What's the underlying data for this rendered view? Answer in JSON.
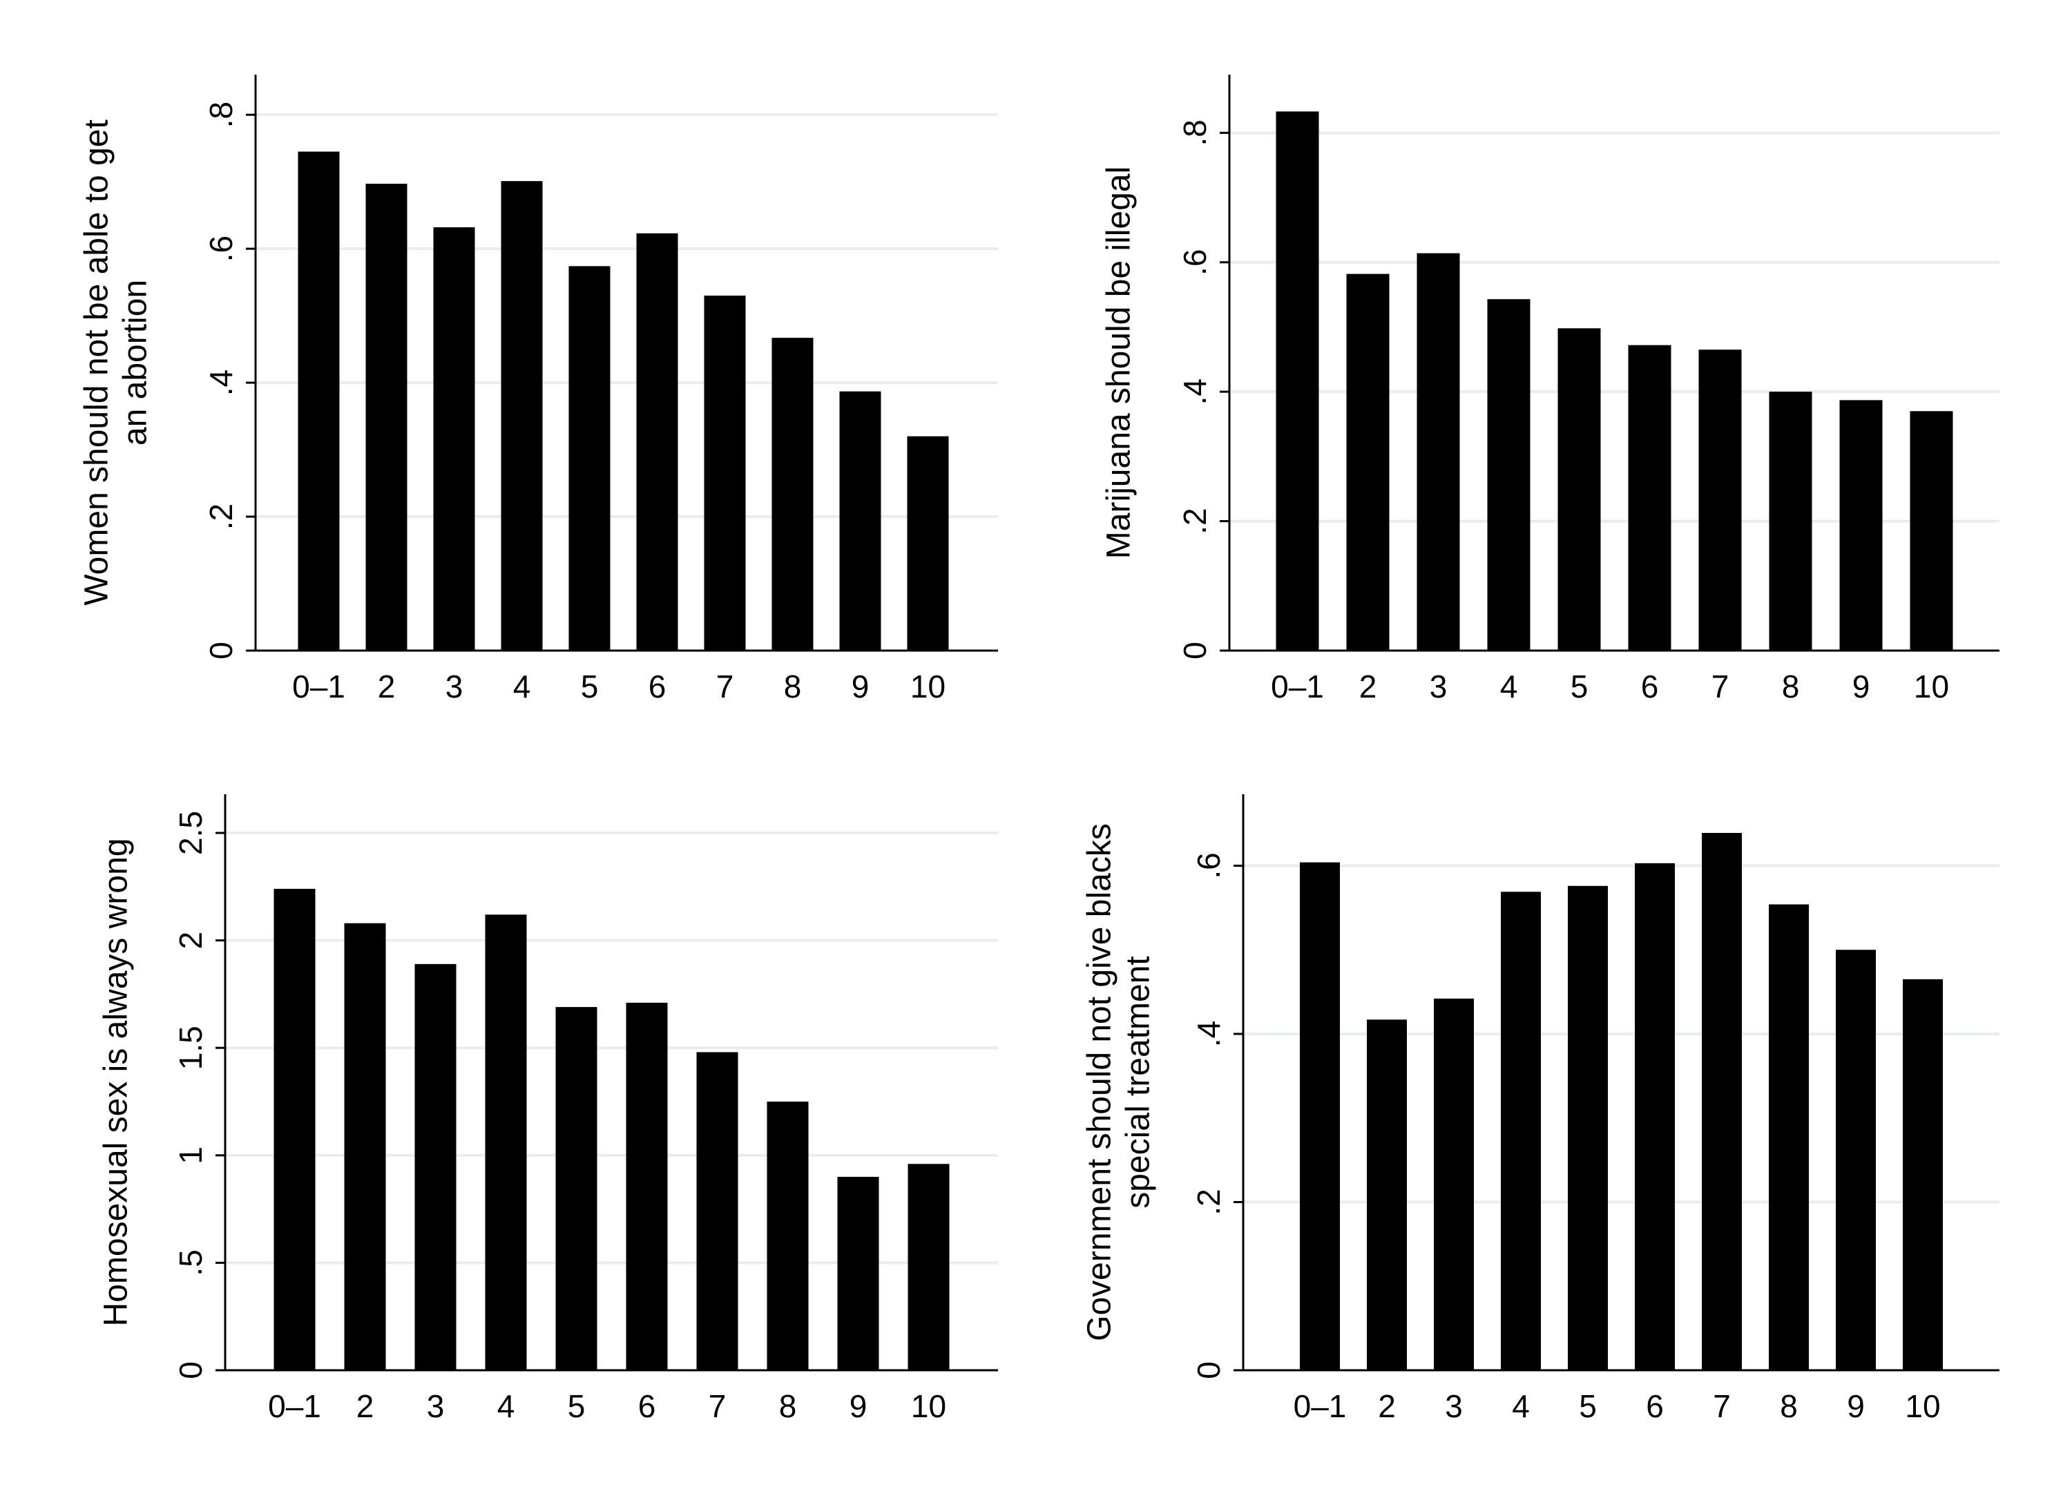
{
  "chart_data": [
    {
      "type": "bar",
      "ylabel": [
        "Women should not be able to get",
        "an abortion"
      ],
      "categories": [
        "0–1",
        "2",
        "3",
        "4",
        "5",
        "6",
        "7",
        "8",
        "9",
        "10"
      ],
      "values": [
        0.745,
        0.697,
        0.632,
        0.701,
        0.574,
        0.623,
        0.53,
        0.467,
        0.387,
        0.32
      ],
      "yticks": [
        0,
        0.2,
        0.4,
        0.6,
        0.8
      ],
      "yticklabels": [
        "0",
        ".2",
        ".4",
        ".6",
        ".8"
      ],
      "ylim": [
        0,
        0.86
      ],
      "grid": true,
      "bar_color": "#000000",
      "grid_color": "#e6eeee"
    },
    {
      "type": "bar",
      "ylabel": [
        "Marijuana should be illegal"
      ],
      "categories": [
        "0–1",
        "2",
        "3",
        "4",
        "5",
        "6",
        "7",
        "8",
        "9",
        "10"
      ],
      "values": [
        0.833,
        0.582,
        0.614,
        0.543,
        0.498,
        0.472,
        0.465,
        0.4,
        0.387,
        0.37
      ],
      "yticks": [
        0,
        0.2,
        0.4,
        0.6,
        0.8
      ],
      "yticklabels": [
        "0",
        ".2",
        ".4",
        ".6",
        ".8"
      ],
      "ylim": [
        0,
        0.89
      ],
      "grid": true,
      "bar_color": "#000000",
      "grid_color": "#e6eeee"
    },
    {
      "type": "bar",
      "ylabel": [
        "Homosexual sex is always wrong"
      ],
      "categories": [
        "0–1",
        "2",
        "3",
        "4",
        "5",
        "6",
        "7",
        "8",
        "9",
        "10"
      ],
      "values": [
        2.24,
        2.08,
        1.89,
        2.12,
        1.69,
        1.71,
        1.48,
        1.25,
        0.9,
        0.96
      ],
      "yticks": [
        0,
        0.5,
        1,
        1.5,
        2,
        2.5
      ],
      "yticklabels": [
        "0",
        ".5",
        "1",
        "1.5",
        "2",
        "2.5"
      ],
      "ylim": [
        0,
        2.68
      ],
      "grid": true,
      "bar_color": "#000000",
      "grid_color": "#e6eeee"
    },
    {
      "type": "bar",
      "ylabel": [
        "Government should not give blacks",
        "special treatment"
      ],
      "categories": [
        "0–1",
        "2",
        "3",
        "4",
        "5",
        "6",
        "7",
        "8",
        "9",
        "10"
      ],
      "values": [
        0.604,
        0.417,
        0.442,
        0.569,
        0.576,
        0.603,
        0.639,
        0.554,
        0.5,
        0.465
      ],
      "yticks": [
        0,
        0.2,
        0.4,
        0.6
      ],
      "yticklabels": [
        "0",
        ".2",
        ".4",
        ".6"
      ],
      "ylim": [
        0,
        0.685
      ],
      "grid": true,
      "bar_color": "#000000",
      "grid_color": "#e6eeee"
    }
  ]
}
